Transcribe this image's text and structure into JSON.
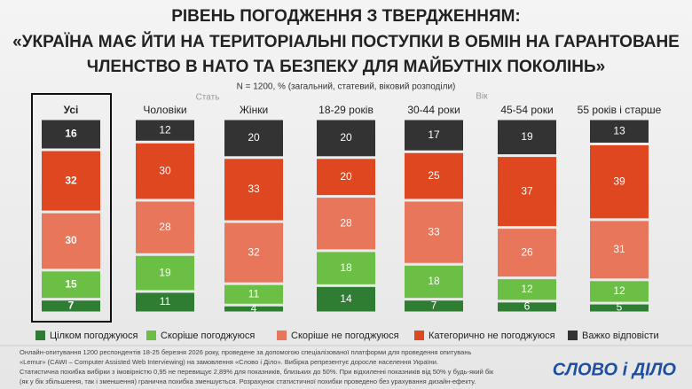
{
  "chart_data": {
    "type": "stacked_bar",
    "title": [
      "РІВЕНЬ ПОГОДЖЕННЯ З ТВЕРДЖЕННЯМ:",
      "«УКРАЇНА МАЄ ЙТИ НА ТЕРИТОРІАЛЬНІ ПОСТУПКИ В ОБМІН НА ГАРАНТОВАНЕ",
      "ЧЛЕНСТВО В НАТО ТА БЕЗПЕКУ ДЛЯ МАЙБУТНІХ ПОКОЛІНЬ»"
    ],
    "subtitle": "N = 1200, % (загальний, статевий, віковий розподіли)",
    "groups": [
      "Стать",
      "Вік"
    ],
    "categories": [
      "Усі",
      "Чоловіки",
      "Жінки",
      "18-29 років",
      "30-44 роки",
      "45-54 роки",
      "55 років і старше"
    ],
    "series": [
      {
        "name": "Цілком погоджуюся",
        "color": "#2f7d32",
        "values": [
          7,
          11,
          4,
          14,
          7,
          6,
          5
        ]
      },
      {
        "name": "Скоріше погоджуюся",
        "color": "#6cbf45",
        "values": [
          15,
          19,
          11,
          18,
          18,
          12,
          12
        ]
      },
      {
        "name": "Скоріше не погоджуюся",
        "color": "#e8765a",
        "values": [
          30,
          28,
          32,
          28,
          33,
          26,
          31
        ]
      },
      {
        "name": "Категорично не погоджуюся",
        "color": "#df4720",
        "values": [
          32,
          30,
          33,
          20,
          25,
          37,
          39
        ]
      },
      {
        "name": "Важко відповісти",
        "color": "#333333",
        "values": [
          16,
          12,
          20,
          20,
          17,
          19,
          13
        ]
      }
    ],
    "note": [
      "Онлайн-опитування 1200 респондентів 18-25 березня 2026 року, проведене за допомогою спеціалізованої платформи для проведення опитувань",
      "«Lemur» (CAWI – Computer Assisted Web Interviewing) на замовлення «Слово і Діло». Вибірка репрезентує доросле населення України.",
      "Статистична похибка вибірки з імовірністю 0,95 не перевищує 2,89% для показників, близьких до 50%. При відхиленні показників від 50% у будь-який бік",
      "(як у бік збільшення, так і зменшення) гранична похибка зменшується. Розрахунок статистичної похибки проведено без урахування дизайн-ефекту."
    ],
    "source_logo": "СЛОВО і ДІЛО"
  }
}
